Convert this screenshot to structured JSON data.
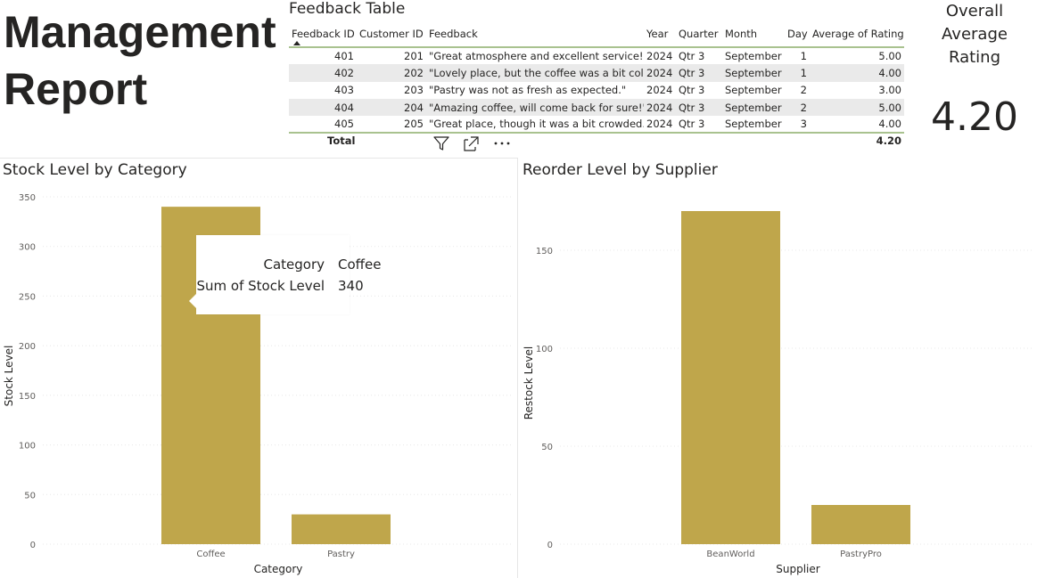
{
  "report": {
    "title_line1": "Management",
    "title_line2": "Report"
  },
  "feedback_table": {
    "title": "Feedback Table",
    "columns": [
      "Feedback ID",
      "Customer ID",
      "Feedback",
      "Year",
      "Quarter",
      "Month",
      "Day",
      "Average of Rating"
    ],
    "rows": [
      [
        "401",
        "201",
        "\"Great atmosphere and excellent service!\"",
        "2024",
        "Qtr 3",
        "September",
        "1",
        "5.00"
      ],
      [
        "402",
        "202",
        "\"Lovely place, but the coffee was a bit cold.\"",
        "2024",
        "Qtr 3",
        "September",
        "1",
        "4.00"
      ],
      [
        "403",
        "203",
        "\"Pastry was not as fresh as expected.\"",
        "2024",
        "Qtr 3",
        "September",
        "2",
        "3.00"
      ],
      [
        "404",
        "204",
        "\"Amazing coffee, will come back for sure!\"",
        "2024",
        "Qtr 3",
        "September",
        "2",
        "5.00"
      ],
      [
        "405",
        "205",
        "\"Great place, though it was a bit crowded.\"",
        "2024",
        "Qtr 3",
        "September",
        "3",
        "4.00"
      ]
    ],
    "total_label": "Total",
    "total_rating": "4.20"
  },
  "visual_header_icons": [
    "filter-icon",
    "focus-mode-icon",
    "more-options-icon"
  ],
  "kpi": {
    "label_line1": "Overall",
    "label_line2": "Average",
    "label_line3": "Rating",
    "value": "4.20"
  },
  "tooltip": {
    "rows": [
      {
        "key": "Category",
        "value": "Coffee"
      },
      {
        "key": "Sum of Stock Level",
        "value": "340"
      }
    ]
  },
  "colors": {
    "bar": "#bfa64b",
    "table_accent": "#a9c28f",
    "row_alt": "#eaeaea"
  },
  "chart_data": [
    {
      "type": "bar",
      "title": "Stock Level by Category",
      "xlabel": "Category",
      "ylabel": "Stock Level",
      "categories": [
        "Coffee",
        "Pastry"
      ],
      "values": [
        340,
        30
      ],
      "ylim": [
        0,
        350
      ],
      "yticks": [
        0,
        50,
        100,
        150,
        200,
        250,
        300,
        350
      ],
      "grid": true
    },
    {
      "type": "bar",
      "title": "Reorder Level by Supplier",
      "xlabel": "Supplier",
      "ylabel": "Restock Level",
      "categories": [
        "BeanWorld",
        "PastryPro"
      ],
      "values": [
        170,
        20
      ],
      "ylim": [
        0,
        170
      ],
      "yticks": [
        0,
        50,
        100,
        150
      ],
      "grid": true
    }
  ]
}
